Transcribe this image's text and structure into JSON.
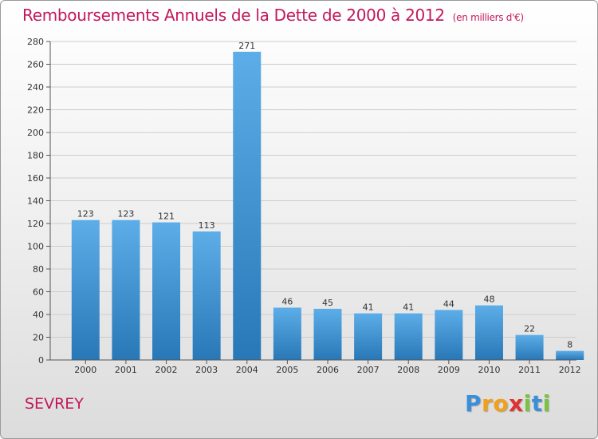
{
  "chart_data": {
    "type": "bar",
    "title": "Remboursements Annuels de la Dette de 2000 à 2012",
    "unit": "(en milliers d'€)",
    "categories": [
      "2000",
      "2001",
      "2002",
      "2003",
      "2004",
      "2005",
      "2006",
      "2007",
      "2008",
      "2009",
      "2010",
      "2011",
      "2012"
    ],
    "values": [
      123,
      123,
      121,
      113,
      271,
      46,
      45,
      41,
      41,
      44,
      48,
      22,
      8
    ],
    "ylim": [
      0,
      280
    ],
    "yticks": [
      0,
      20,
      40,
      60,
      80,
      100,
      120,
      140,
      160,
      180,
      200,
      220,
      240,
      260,
      280
    ],
    "grid": true,
    "colors": {
      "bar_top": "#5dade8",
      "bar_bottom": "#2878b8",
      "title": "#c2185b"
    }
  },
  "commune": "SEVREY",
  "logo": {
    "letters": [
      "P",
      "r",
      "o",
      "x",
      "i",
      "t",
      "i"
    ],
    "colors": [
      "#3a8fd8",
      "#f2a019",
      "#f2a019",
      "#e0302f",
      "#7cc242",
      "#3a8fd8",
      "#7cc242"
    ]
  }
}
